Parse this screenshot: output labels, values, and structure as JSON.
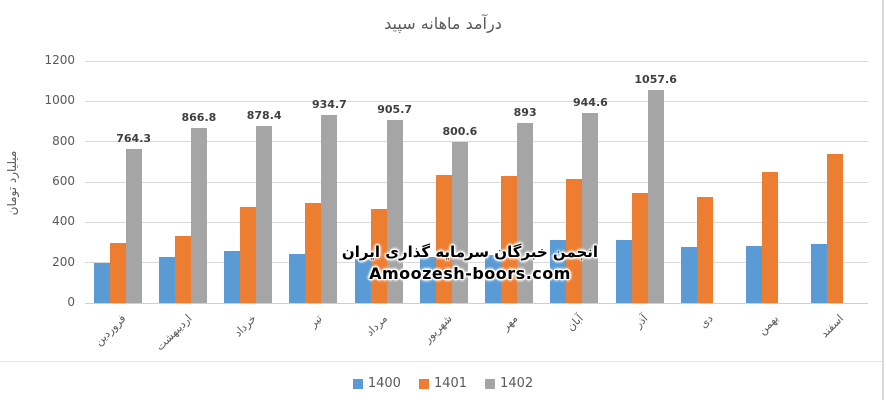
{
  "chart_data": {
    "type": "bar",
    "title": "درآمد ماهانه سپید",
    "ylabel": "میلیارد تومان",
    "xlabel": "",
    "categories": [
      "فروردین",
      "اردیبهشت",
      "خرداد",
      "تیر",
      "مرداد",
      "شهریور",
      "مهر",
      "آبان",
      "آذر",
      "دی",
      "بهمن",
      "اسفند"
    ],
    "series": [
      {
        "name": "1400",
        "color": "#5B9BD5",
        "data_labels": false,
        "values": [
          200,
          230,
          260,
          245,
          220,
          230,
          240,
          310,
          310,
          280,
          285,
          295
        ]
      },
      {
        "name": "1401",
        "color": "#ED7D31",
        "data_labels": false,
        "values": [
          300,
          330,
          475,
          495,
          465,
          635,
          630,
          615,
          545,
          525,
          650,
          740
        ]
      },
      {
        "name": "1402",
        "color": "#A5A5A5",
        "data_labels": true,
        "values": [
          764.3,
          866.8,
          878.4,
          934.7,
          905.7,
          800.6,
          893,
          944.6,
          1057.6,
          null,
          null,
          null
        ]
      }
    ],
    "ylim": [
      0,
      1200
    ],
    "yticks": [
      0,
      200,
      400,
      600,
      800,
      1000,
      1200
    ],
    "grid": true,
    "legend_position": "bottom"
  },
  "watermark": {
    "line1": "انجمن خبرگان سرمایه گذاری ایران",
    "line2": "Amoozesh-boors.com"
  },
  "colors": {
    "series_blue": "#5B9BD5",
    "series_orange": "#ED7D31",
    "series_gray": "#A5A5A5",
    "axis_text": "#595959",
    "gridline": "#D9D9D9",
    "data_label": "#3F3F3F"
  }
}
